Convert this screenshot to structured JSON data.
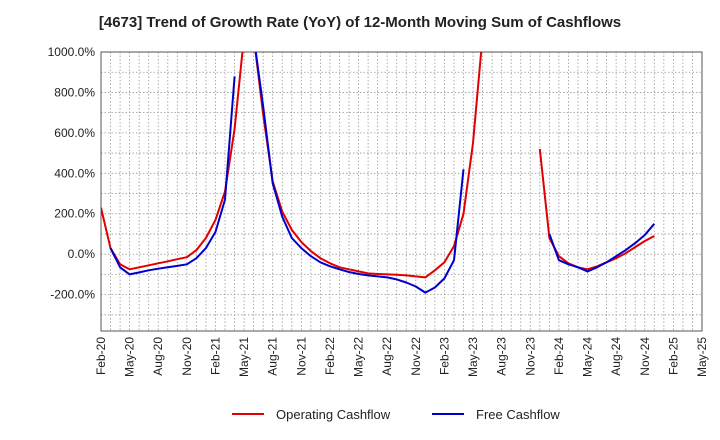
{
  "chart_data": {
    "type": "line",
    "title": "[4673]  Trend of Growth Rate (YoY) of 12-Month Moving Sum of Cashflows",
    "xlabel": "",
    "ylabel": "",
    "ylim": [
      -380,
      1000
    ],
    "yticks": [
      -200,
      0,
      200,
      400,
      600,
      800,
      1000
    ],
    "ytick_labels": [
      "-200.0%",
      "0.0%",
      "200.0%",
      "400.0%",
      "600.0%",
      "800.0%",
      "1000.0%"
    ],
    "x_range": [
      "2020-02",
      "2025-05"
    ],
    "xtick_labels": [
      "Feb-20",
      "May-20",
      "Aug-20",
      "Nov-20",
      "Feb-21",
      "May-21",
      "Aug-21",
      "Nov-21",
      "Feb-22",
      "May-22",
      "Aug-22",
      "Nov-22",
      "Feb-23",
      "May-23",
      "Aug-23",
      "Nov-23",
      "Feb-24",
      "May-24",
      "Aug-24",
      "Nov-24",
      "Feb-25",
      "May-25"
    ],
    "grid": true,
    "legend_position": "bottom",
    "colors": {
      "operating": "#e00000",
      "free": "#0000cc",
      "grid": "#999999"
    },
    "series": [
      {
        "name": "Operating Cashflow",
        "points": [
          [
            "2020-02",
            230
          ],
          [
            "2020-03",
            30
          ],
          [
            "2020-04",
            -50
          ],
          [
            "2020-05",
            -75
          ],
          [
            "2020-06",
            -65
          ],
          [
            "2020-07",
            -55
          ],
          [
            "2020-08",
            -45
          ],
          [
            "2020-09",
            -35
          ],
          [
            "2020-10",
            -25
          ],
          [
            "2020-11",
            -15
          ],
          [
            "2020-12",
            20
          ],
          [
            "2021-01",
            80
          ],
          [
            "2021-02",
            170
          ],
          [
            "2021-03",
            310
          ],
          [
            "2021-04",
            620
          ],
          [
            "2021-05",
            1080
          ],
          null,
          [
            "2021-06",
            1080
          ],
          [
            "2021-07",
            690
          ],
          [
            "2021-08",
            360
          ],
          [
            "2021-09",
            210
          ],
          [
            "2021-10",
            120
          ],
          [
            "2021-11",
            60
          ],
          [
            "2021-12",
            15
          ],
          [
            "2022-01",
            -20
          ],
          [
            "2022-02",
            -45
          ],
          [
            "2022-03",
            -65
          ],
          [
            "2022-04",
            -75
          ],
          [
            "2022-05",
            -85
          ],
          [
            "2022-06",
            -95
          ],
          [
            "2022-07",
            -98
          ],
          [
            "2022-08",
            -100
          ],
          [
            "2022-09",
            -102
          ],
          [
            "2022-10",
            -105
          ],
          [
            "2022-11",
            -110
          ],
          [
            "2022-12",
            -115
          ],
          [
            "2023-01",
            -80
          ],
          [
            "2023-02",
            -40
          ],
          [
            "2023-03",
            40
          ],
          [
            "2023-04",
            200
          ],
          [
            "2023-05",
            550
          ],
          [
            "2023-06",
            1080
          ],
          null,
          [
            "2023-12",
            520
          ],
          [
            "2024-01",
            80
          ],
          [
            "2024-02",
            -10
          ],
          [
            "2024-03",
            -45
          ],
          [
            "2024-04",
            -65
          ],
          [
            "2024-05",
            -75
          ],
          [
            "2024-06",
            -60
          ],
          [
            "2024-07",
            -40
          ],
          [
            "2024-08",
            -20
          ],
          [
            "2024-09",
            5
          ],
          [
            "2024-10",
            35
          ],
          [
            "2024-11",
            65
          ],
          [
            "2024-12",
            90
          ]
        ]
      },
      {
        "name": "Free Cashflow",
        "points": [
          [
            "2020-03",
            30
          ],
          [
            "2020-04",
            -65
          ],
          [
            "2020-05",
            -100
          ],
          [
            "2020-06",
            -90
          ],
          [
            "2020-07",
            -80
          ],
          [
            "2020-08",
            -72
          ],
          [
            "2020-09",
            -65
          ],
          [
            "2020-10",
            -58
          ],
          [
            "2020-11",
            -50
          ],
          [
            "2020-12",
            -20
          ],
          [
            "2021-01",
            30
          ],
          [
            "2021-02",
            110
          ],
          [
            "2021-03",
            270
          ],
          [
            "2021-04",
            880
          ],
          null,
          [
            "2021-06",
            1080
          ],
          [
            "2021-07",
            730
          ],
          [
            "2021-08",
            350
          ],
          [
            "2021-09",
            185
          ],
          [
            "2021-10",
            80
          ],
          [
            "2021-11",
            30
          ],
          [
            "2021-12",
            -10
          ],
          [
            "2022-01",
            -40
          ],
          [
            "2022-02",
            -60
          ],
          [
            "2022-03",
            -75
          ],
          [
            "2022-04",
            -88
          ],
          [
            "2022-05",
            -98
          ],
          [
            "2022-06",
            -105
          ],
          [
            "2022-07",
            -110
          ],
          [
            "2022-08",
            -115
          ],
          [
            "2022-09",
            -125
          ],
          [
            "2022-10",
            -140
          ],
          [
            "2022-11",
            -160
          ],
          [
            "2022-12",
            -190
          ],
          [
            "2023-01",
            -165
          ],
          [
            "2023-02",
            -120
          ],
          [
            "2023-03",
            -30
          ],
          [
            "2023-04",
            420
          ],
          null,
          [
            "2024-01",
            100
          ],
          [
            "2024-02",
            -30
          ],
          [
            "2024-03",
            -50
          ],
          [
            "2024-04",
            -65
          ],
          [
            "2024-05",
            -85
          ],
          [
            "2024-06",
            -65
          ],
          [
            "2024-07",
            -40
          ],
          [
            "2024-08",
            -10
          ],
          [
            "2024-09",
            20
          ],
          [
            "2024-10",
            55
          ],
          [
            "2024-11",
            95
          ],
          [
            "2024-12",
            150
          ]
        ]
      }
    ]
  }
}
